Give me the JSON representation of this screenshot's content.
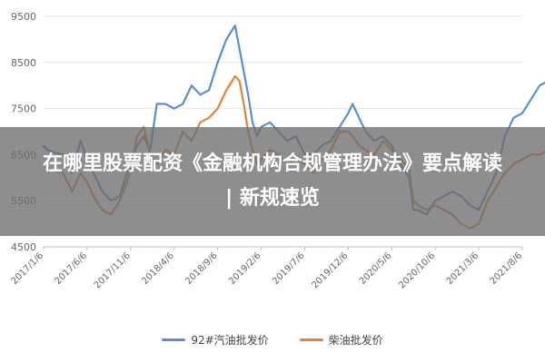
{
  "overlay": {
    "line1": "在哪里股票配资《金融机构合规管理办法》要点解读",
    "line2": "| 新规速览"
  },
  "colors": {
    "gasoline": "#5b8fc9",
    "diesel": "#e0843a",
    "grid": "#e6e6e6",
    "axis": "#bfbfbf",
    "tick_text": "#666666"
  },
  "chart_data": {
    "type": "line",
    "title": "",
    "xlabel": "",
    "ylabel": "",
    "ylim": [
      4500,
      9500
    ],
    "y_ticks": [
      "4500",
      "5500",
      "6500",
      "7500",
      "8500",
      "9500"
    ],
    "x_ticks": [
      "2017/1/6",
      "2017/6/6",
      "2017/11/6",
      "2018/4/6",
      "2018/9/6",
      "2019/2/6",
      "2019/7/6",
      "2019/12/6",
      "2020/5/6",
      "2020/10/6",
      "2021/3/6",
      "2021/8/6"
    ],
    "legend_position": "bottom",
    "grid": true,
    "series": [
      {
        "name": "92#汽油批发价",
        "color_key": "gasoline",
        "x": [
          0,
          0.08,
          0.25,
          0.45,
          0.65,
          0.85,
          1.0,
          1.2,
          1.35,
          1.55,
          1.75,
          1.95,
          2.15,
          2.3,
          2.45,
          2.6,
          2.8,
          3.0,
          3.2,
          3.4,
          3.6,
          3.8,
          4.0,
          4.2,
          4.4,
          4.5,
          4.6,
          4.7,
          4.8,
          4.9,
          5.0,
          5.2,
          5.4,
          5.6,
          5.8,
          6.0,
          6.2,
          6.4,
          6.6,
          6.8,
          7.0,
          7.1,
          7.25,
          7.4,
          7.6,
          7.8,
          8.0,
          8.2,
          8.4,
          8.5,
          8.6,
          8.8,
          9.0,
          9.2,
          9.4,
          9.6,
          9.8,
          10.0,
          10.2,
          10.4,
          10.6,
          10.8,
          11.0,
          11.2,
          11.4,
          11.6,
          11.8
        ],
        "values": [
          6700,
          6600,
          6550,
          6500,
          6100,
          6800,
          6400,
          6000,
          5700,
          5500,
          5600,
          6200,
          6700,
          6900,
          6600,
          7600,
          7600,
          7500,
          7600,
          8000,
          7800,
          7900,
          8500,
          9000,
          9300,
          8800,
          8300,
          7800,
          7200,
          6900,
          7100,
          7200,
          7000,
          6800,
          6900,
          6500,
          6500,
          6700,
          6800,
          7100,
          7400,
          7600,
          7300,
          7000,
          6800,
          6900,
          6700,
          6300,
          6000,
          5300,
          5300,
          5200,
          5500,
          5600,
          5700,
          5600,
          5400,
          5300,
          5700,
          6100,
          6900,
          7300,
          7400,
          7700,
          8000,
          8100,
          7800
        ]
      },
      {
        "name": "柴油批发价",
        "color_key": "diesel",
        "x": [
          0,
          0.08,
          0.25,
          0.45,
          0.65,
          0.85,
          1.0,
          1.2,
          1.35,
          1.55,
          1.75,
          1.95,
          2.15,
          2.3,
          2.45,
          2.6,
          2.8,
          3.0,
          3.2,
          3.4,
          3.6,
          3.8,
          4.0,
          4.2,
          4.4,
          4.5,
          4.6,
          4.7,
          4.8,
          4.9,
          5.0,
          5.2,
          5.4,
          5.6,
          5.8,
          6.0,
          6.2,
          6.4,
          6.6,
          6.8,
          7.0,
          7.1,
          7.25,
          7.4,
          7.6,
          7.8,
          8.0,
          8.2,
          8.4,
          8.5,
          8.6,
          8.8,
          9.0,
          9.2,
          9.4,
          9.6,
          9.8,
          10.0,
          10.2,
          10.4,
          10.6,
          10.8,
          11.0,
          11.2,
          11.4,
          11.6,
          11.8
        ],
        "values": [
          6300,
          6200,
          6150,
          6100,
          5700,
          6100,
          5900,
          5500,
          5300,
          5200,
          5500,
          6000,
          6900,
          7100,
          6500,
          6300,
          6600,
          6500,
          7000,
          6800,
          7200,
          7300,
          7500,
          7900,
          8200,
          8100,
          7600,
          7000,
          6600,
          6300,
          6400,
          6600,
          6500,
          6300,
          6400,
          6300,
          6100,
          6400,
          6600,
          7000,
          7000,
          6900,
          6700,
          6600,
          6500,
          6800,
          6600,
          6400,
          6200,
          5500,
          5400,
          5300,
          5400,
          5300,
          5200,
          5000,
          4900,
          5000,
          5500,
          5800,
          6100,
          6300,
          6400,
          6500,
          6500,
          6600,
          6500
        ]
      }
    ]
  }
}
